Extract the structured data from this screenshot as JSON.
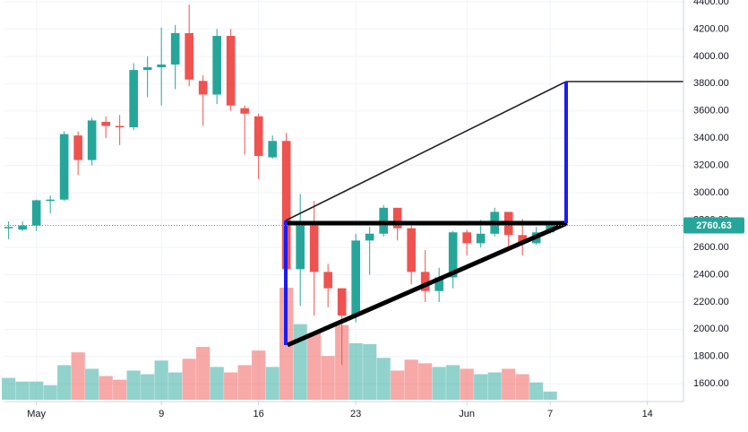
{
  "chart_data": {
    "type": "candlestick",
    "x": [
      -2,
      -1,
      0,
      1,
      2,
      3,
      4,
      5,
      6,
      7,
      8,
      9,
      10,
      11,
      12,
      13,
      14,
      15,
      16,
      17,
      18,
      19,
      20,
      21,
      22,
      23,
      24,
      25,
      26,
      27,
      28,
      29,
      30,
      31,
      32,
      33,
      34,
      35,
      36,
      37
    ],
    "open": [
      2740,
      2730,
      2760,
      2940,
      2950,
      3420,
      3240,
      3520,
      3490,
      3480,
      3900,
      3920,
      3940,
      4170,
      3820,
      3720,
      4150,
      3620,
      3560,
      3260,
      3380,
      2440,
      2770,
      2420,
      2300,
      2100,
      2650,
      2700,
      2890,
      2740,
      2420,
      2280,
      2380,
      2710,
      2630,
      2700,
      2860,
      2690,
      2630,
      2710
    ],
    "high": [
      2790,
      2790,
      2950,
      2980,
      3450,
      3450,
      3550,
      3560,
      3570,
      3950,
      4000,
      4210,
      4230,
      4380,
      3860,
      4200,
      4200,
      3640,
      3580,
      3420,
      3440,
      2990,
      2940,
      2480,
      2300,
      2700,
      2750,
      2910,
      2890,
      2760,
      2580,
      2450,
      2720,
      2730,
      2800,
      2890,
      2860,
      2810,
      2750,
      2790
    ],
    "low": [
      2660,
      2720,
      2720,
      2850,
      2940,
      3130,
      3200,
      3400,
      3350,
      3460,
      3700,
      3640,
      3760,
      3780,
      3490,
      3650,
      3600,
      3280,
      3100,
      3250,
      1900,
      2170,
      2100,
      2160,
      1740,
      2050,
      2400,
      2680,
      2650,
      2330,
      2200,
      2200,
      2300,
      2540,
      2600,
      2680,
      2580,
      2540,
      2620,
      2700
    ],
    "close": [
      2750,
      2760,
      2945,
      2950,
      3430,
      3240,
      3530,
      3490,
      3480,
      3900,
      3920,
      3940,
      4170,
      3830,
      3720,
      4150,
      3640,
      3580,
      3270,
      3380,
      2440,
      2770,
      2420,
      2300,
      2100,
      2650,
      2700,
      2890,
      2740,
      2420,
      2280,
      2380,
      2710,
      2630,
      2700,
      2860,
      2690,
      2630,
      2710,
      2760.63
    ],
    "volume": [
      24,
      20,
      20,
      16,
      38,
      52,
      34,
      26,
      22,
      32,
      28,
      43,
      30,
      45,
      58,
      36,
      30,
      38,
      54,
      36,
      123,
      83,
      73,
      48,
      82,
      62,
      61,
      46,
      32,
      44,
      40,
      36,
      38,
      34,
      28,
      30,
      34,
      28,
      19,
      9
    ],
    "up_color": "#26a69a",
    "down_color": "#ef5350",
    "xlim": [
      -2.3,
      46.6
    ],
    "xticks": [
      {
        "value": 0,
        "label": "May"
      },
      9,
      16,
      23,
      {
        "value": 31,
        "label": "Jun"
      },
      {
        "value": 37,
        "label": "7"
      },
      {
        "value": 44,
        "label": "14"
      }
    ],
    "ylim": [
      1470,
      4413
    ],
    "yticks": [
      {
        "value": 1600,
        "label": "1600.00"
      },
      {
        "value": 1800,
        "label": "1800.00"
      },
      {
        "value": 2000,
        "label": "2000.00"
      },
      {
        "value": 2200,
        "label": "2200.00"
      },
      {
        "value": 2400,
        "label": "2400.00"
      },
      {
        "value": 2600,
        "label": "2600.00"
      },
      {
        "value": 2800,
        "label": "2800.00"
      },
      {
        "value": 3000,
        "label": "3000.00"
      },
      {
        "value": 3200,
        "label": "3200.00"
      },
      {
        "value": 3400,
        "label": "3400.00"
      },
      {
        "value": 3600,
        "label": "3600.00"
      },
      {
        "value": 3800,
        "label": "3800.00"
      },
      {
        "value": 4000,
        "label": "4000.00"
      },
      {
        "value": 4200,
        "label": "4200.00"
      },
      {
        "value": 4400,
        "label": "4400.00"
      }
    ],
    "last_price": {
      "value": 2760.63,
      "label": "2760.63"
    },
    "grid": true
  }
}
